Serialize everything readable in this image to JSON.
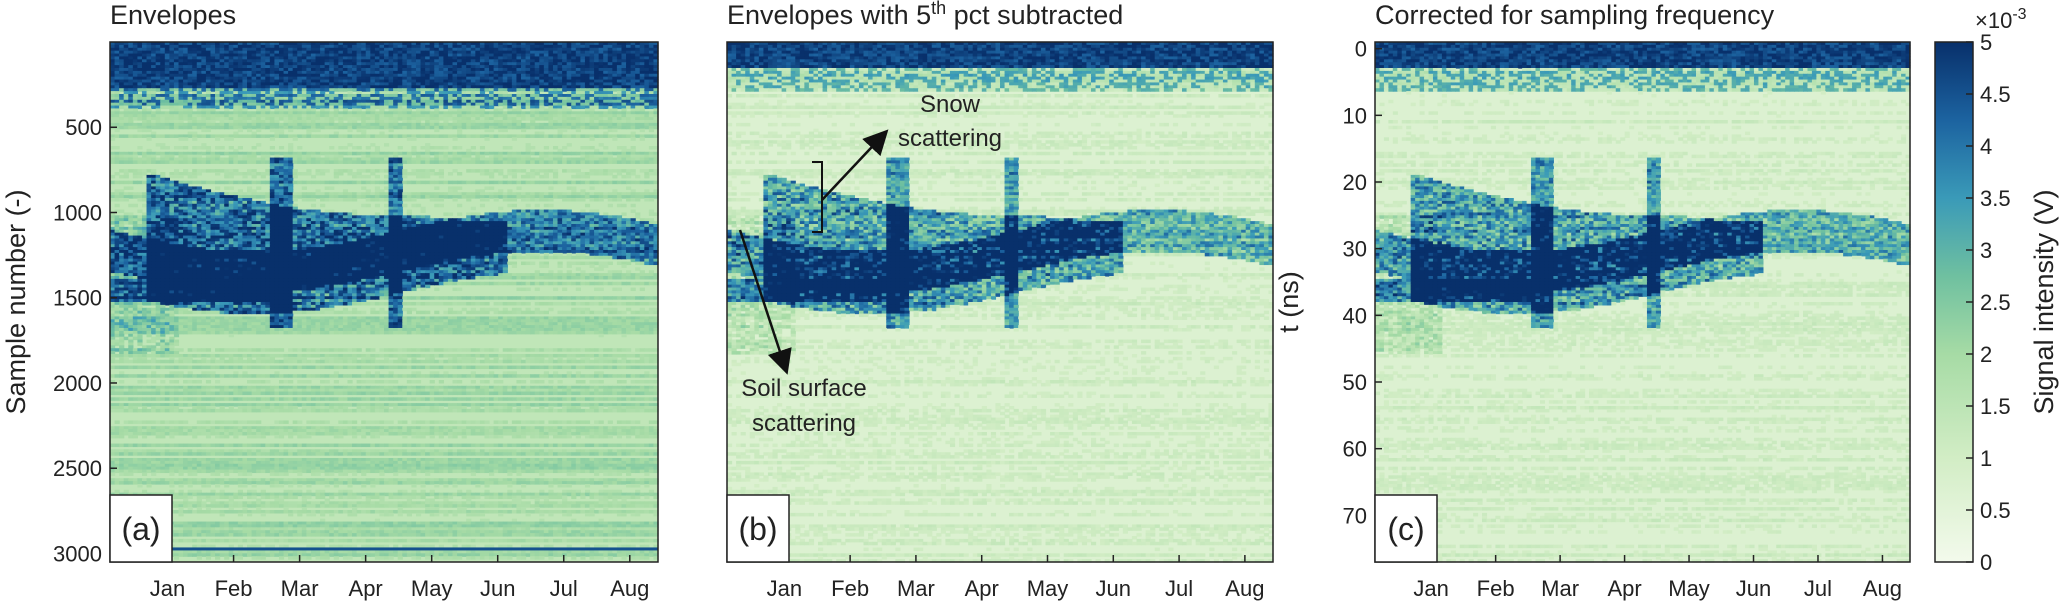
{
  "colors": {
    "colormap_low": "#f3faec",
    "colormap_mid": "#7cc59a",
    "colormap_high": "#08306b",
    "axis": "#222222"
  },
  "chart_data": [
    {
      "type": "heatmap",
      "panel_label": "(a)",
      "title": "Envelopes",
      "ylabel": "Sample number (-)",
      "xlabel": "",
      "x_ticklabels": [
        "Jan",
        "Feb",
        "Mar",
        "Apr",
        "May",
        "Jun",
        "Jul",
        "Aug"
      ],
      "y_ticks": [
        500,
        1000,
        1500,
        2000,
        2500,
        3000
      ],
      "ylim": [
        3050,
        0
      ],
      "y_reversed": true,
      "features": {
        "saturated_band_top": [
          0,
          260
        ],
        "snow_surface_onset": [
          650,
          1000
        ],
        "soil_surface_band": [
          1100,
          1450
        ],
        "bottom_line": 2980
      }
    },
    {
      "type": "heatmap",
      "panel_label": "(b)",
      "title_main": "Envelopes with 5",
      "title_sup": "th",
      "title_rest": " pct subtracted",
      "ylabel": "",
      "xlabel": "",
      "x_ticklabels": [
        "Jan",
        "Feb",
        "Mar",
        "Apr",
        "May",
        "Jun",
        "Jul",
        "Aug"
      ],
      "y_ticks": [],
      "ylim": [
        3050,
        0
      ],
      "annotations": [
        {
          "text_line1": "Snow",
          "text_line2": "scattering"
        },
        {
          "text_line1": "Soil surface",
          "text_line2": "scattering"
        }
      ]
    },
    {
      "type": "heatmap",
      "panel_label": "(c)",
      "title": "Corrected for sampling frequency",
      "ylabel": "t (ns)",
      "xlabel": "",
      "x_ticklabels": [
        "Jan",
        "Feb",
        "Mar",
        "Apr",
        "May",
        "Jun",
        "Jul",
        "Aug"
      ],
      "y_ticks": [
        0,
        10,
        20,
        30,
        40,
        50,
        60,
        70
      ],
      "ylim": [
        77,
        -1
      ],
      "y_reversed": true
    }
  ],
  "colorbar": {
    "label": "Signal intensity (V)",
    "multiplier_base": "×10",
    "multiplier_exp": "-3",
    "ticks": [
      "0",
      "0.5",
      "1",
      "1.5",
      "2",
      "2.5",
      "3",
      "3.5",
      "4",
      "4.5",
      "5"
    ],
    "range": [
      0,
      5
    ]
  }
}
